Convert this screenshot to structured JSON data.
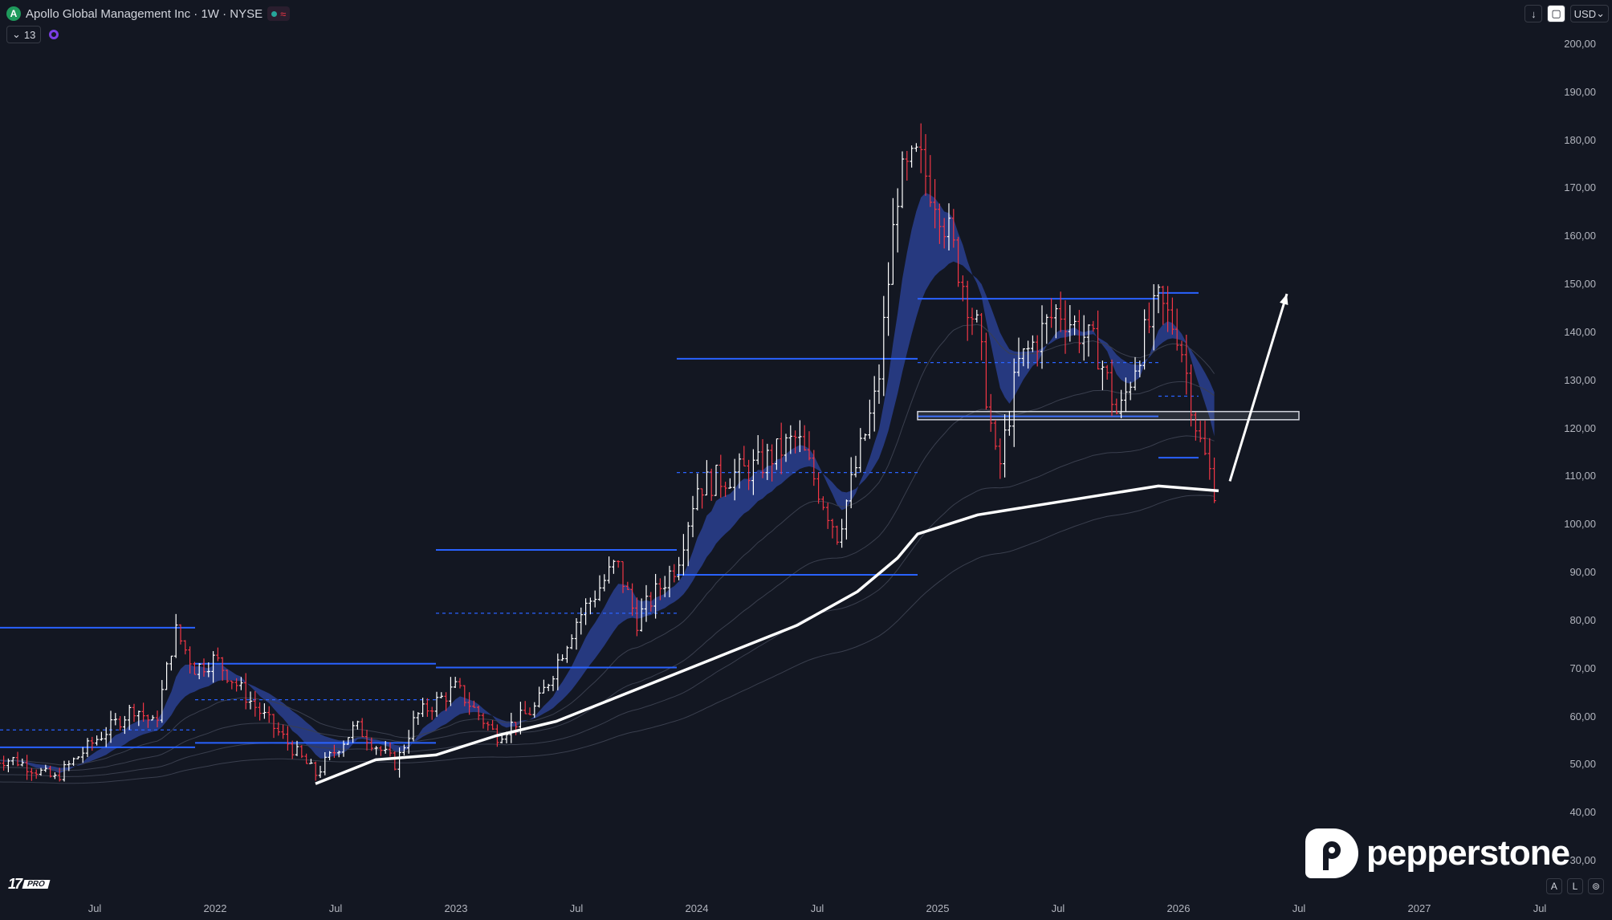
{
  "header": {
    "logo_letter": "A",
    "title": "Apollo Global Management Inc · 1W · NYSE",
    "indicator_count": "13"
  },
  "toolbar": {
    "download_icon": "↓",
    "screenshot_icon": "▢",
    "currency": "USD",
    "currency_chevron": "⌄"
  },
  "footer": {
    "auto_label": "A",
    "log_label": "L",
    "settings_icon": "⊚"
  },
  "tv_logo": {
    "mark": "17",
    "tag": "PRO"
  },
  "brand": {
    "name": "pepperstone"
  },
  "colors": {
    "background": "#131722",
    "up": "#ffffff",
    "down": "#f23645",
    "level": "#2962ff",
    "band": "#2a3f8f",
    "ma": "#ffffff",
    "zone": "#d1d4dc"
  },
  "chart_data": {
    "type": "candlestick",
    "y_axis": {
      "range": [
        25,
        205
      ],
      "ticks": [
        "200,00",
        "190,00",
        "180,00",
        "170,00",
        "160,00",
        "150,00",
        "140,00",
        "130,00",
        "120,00",
        "110,00",
        "100,00",
        "90,00",
        "80,00",
        "70,00",
        "60,00",
        "50,00",
        "40,00",
        "30,00"
      ]
    },
    "x_axis": {
      "tick_labels": [
        "Jul",
        "2022",
        "Jul",
        "2023",
        "Jul",
        "2024",
        "Jul",
        "2025",
        "Jul",
        "2026",
        "Jul",
        "2027",
        "Jul"
      ]
    },
    "price_path": [
      [
        "2021-03",
        51
      ],
      [
        "2021-05",
        47
      ],
      [
        "2021-07",
        55
      ],
      [
        "2021-09",
        62
      ],
      [
        "2021-10",
        58
      ],
      [
        "2021-11",
        78
      ],
      [
        "2021-12",
        70
      ],
      [
        "2022-01",
        72
      ],
      [
        "2022-03",
        62
      ],
      [
        "2022-06",
        48
      ],
      [
        "2022-08",
        58
      ],
      [
        "2022-10",
        50
      ],
      [
        "2022-11",
        60
      ],
      [
        "2023-01",
        66
      ],
      [
        "2023-03",
        56
      ],
      [
        "2023-05",
        62
      ],
      [
        "2023-07",
        80
      ],
      [
        "2023-09",
        92
      ],
      [
        "2023-10",
        80
      ],
      [
        "2023-12",
        92
      ],
      [
        "2024-01",
        108
      ],
      [
        "2024-04",
        112
      ],
      [
        "2024-06",
        118
      ],
      [
        "2024-08",
        98
      ],
      [
        "2024-10",
        128
      ],
      [
        "2024-11",
        170
      ],
      [
        "2024-12",
        176
      ],
      [
        "2025-01",
        168
      ],
      [
        "2025-03",
        140
      ],
      [
        "2025-04",
        110
      ],
      [
        "2025-05",
        133
      ],
      [
        "2025-07",
        145
      ],
      [
        "2025-09",
        136
      ],
      [
        "2025-10",
        122
      ],
      [
        "2025-11",
        136
      ],
      [
        "2025-12",
        146
      ],
      [
        "2026-01",
        140
      ],
      [
        "2026-02",
        118
      ],
      [
        "2026-03",
        105
      ]
    ],
    "moving_average": [
      [
        "2022-06",
        46
      ],
      [
        "2022-09",
        51
      ],
      [
        "2022-12",
        52
      ],
      [
        "2023-03",
        56
      ],
      [
        "2023-06",
        59
      ],
      [
        "2023-09",
        64
      ],
      [
        "2023-12",
        69
      ],
      [
        "2024-03",
        74
      ],
      [
        "2024-06",
        79
      ],
      [
        "2024-09",
        86
      ],
      [
        "2024-11",
        93
      ],
      [
        "2024-12",
        98
      ],
      [
        "2025-03",
        102
      ],
      [
        "2025-06",
        104
      ],
      [
        "2025-09",
        106
      ],
      [
        "2025-12",
        108
      ],
      [
        "2026-03",
        107
      ]
    ],
    "levels": [
      {
        "start": "2021-01",
        "end": "2021-12",
        "price": 78.5,
        "style": "solid"
      },
      {
        "start": "2021-01",
        "end": "2021-12",
        "price": 57.2,
        "style": "dashed"
      },
      {
        "start": "2021-01",
        "end": "2021-12",
        "price": 53.6,
        "style": "solid"
      },
      {
        "start": "2021-12",
        "end": "2022-12",
        "price": 71.0,
        "style": "solid"
      },
      {
        "start": "2021-12",
        "end": "2022-12",
        "price": 63.5,
        "style": "dashed"
      },
      {
        "start": "2021-12",
        "end": "2022-12",
        "price": 54.5,
        "style": "solid"
      },
      {
        "start": "2022-12",
        "end": "2023-12",
        "price": 94.7,
        "style": "solid"
      },
      {
        "start": "2022-12",
        "end": "2023-12",
        "price": 81.5,
        "style": "dashed"
      },
      {
        "start": "2022-12",
        "end": "2023-12",
        "price": 70.2,
        "style": "solid"
      },
      {
        "start": "2023-12",
        "end": "2024-12",
        "price": 134.5,
        "style": "solid"
      },
      {
        "start": "2023-12",
        "end": "2024-12",
        "price": 110.8,
        "style": "dashed"
      },
      {
        "start": "2023-12",
        "end": "2024-12",
        "price": 89.5,
        "style": "solid"
      },
      {
        "start": "2024-12",
        "end": "2025-12",
        "price": 147.0,
        "style": "solid"
      },
      {
        "start": "2024-12",
        "end": "2025-12",
        "price": 133.7,
        "style": "dashed"
      },
      {
        "start": "2024-12",
        "end": "2025-12",
        "price": 122.5,
        "style": "solid"
      },
      {
        "start": "2025-12",
        "end": "2026-02",
        "price": 148.2,
        "style": "solid"
      },
      {
        "start": "2025-12",
        "end": "2026-02",
        "price": 126.7,
        "style": "dashed"
      },
      {
        "start": "2025-12",
        "end": "2026-02",
        "price": 113.9,
        "style": "solid"
      }
    ],
    "zone": {
      "start": "2024-12",
      "end": "2026-07",
      "low": 121.8,
      "high": 123.5
    },
    "arrow": {
      "from": [
        "2026-03",
        109
      ],
      "to": [
        "2026-06",
        148
      ]
    }
  }
}
